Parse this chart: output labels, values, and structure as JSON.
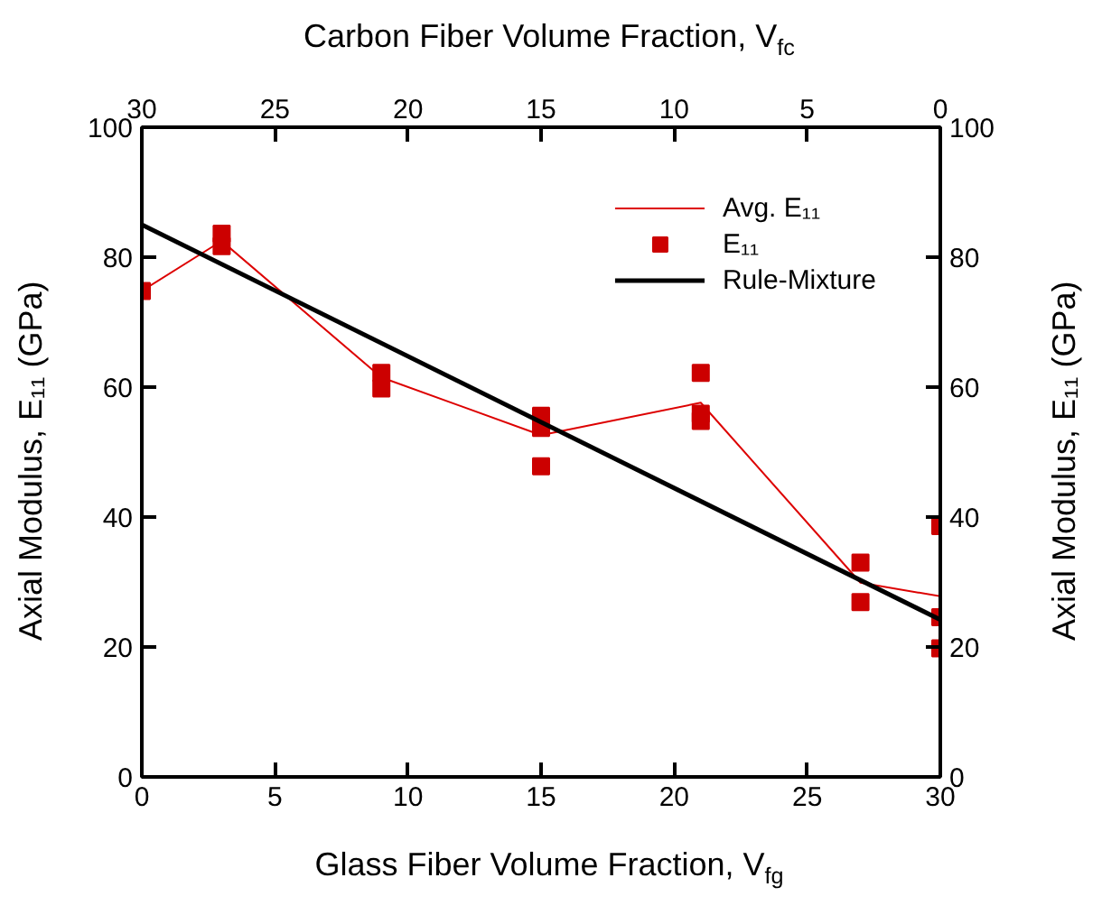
{
  "chart_data": {
    "type": "scatter",
    "xlabel": "Glass Fiber Volume Fraction, V$_{fg}$",
    "x2label": "Carbon Fiber Volume Fraction, V$_{fc}$",
    "ylabel": "Axial Modulus, E₁₁ (GPa)",
    "y2label": "Axial Modulus, E₁₁ (GPa)",
    "xlim": [
      0,
      30
    ],
    "xticks": [
      0,
      5,
      10,
      15,
      20,
      25,
      30
    ],
    "x2lim": [
      30,
      0
    ],
    "x2ticks": [
      30,
      25,
      20,
      15,
      10,
      5,
      0
    ],
    "ylim": [
      0,
      100
    ],
    "yticks": [
      0,
      20,
      40,
      60,
      80,
      100
    ],
    "y2lim": [
      0,
      100
    ],
    "y2ticks": [
      0,
      20,
      40,
      60,
      80,
      100
    ],
    "grid": false,
    "legend": "top right",
    "series": [
      {
        "name": "Avg. E₁₁",
        "type": "line",
        "color": "#dd0000",
        "line_style": "solid",
        "x": [
          0,
          3,
          9,
          15,
          21,
          27,
          30
        ],
        "values": [
          74.8,
          82.5,
          61.5,
          52.6,
          57.6,
          29.9,
          27.8
        ]
      },
      {
        "name": "E₁₁",
        "color": "#cc0000",
        "marker": "square",
        "x": [
          0,
          3,
          3,
          9,
          9,
          15,
          15,
          15,
          21,
          21,
          21,
          27,
          27,
          30,
          30,
          30
        ],
        "values": [
          74.8,
          83.6,
          81.7,
          62.2,
          59.8,
          55.6,
          53.7,
          47.8,
          62.2,
          55.9,
          54.8,
          33,
          26.9,
          38.6,
          24.6,
          19.8
        ]
      },
      {
        "name": "Rule-Mixture",
        "type": "line",
        "color": "#000000",
        "line_style": "solid",
        "x": [
          0,
          30
        ],
        "values": [
          85,
          24.2
        ]
      }
    ]
  }
}
